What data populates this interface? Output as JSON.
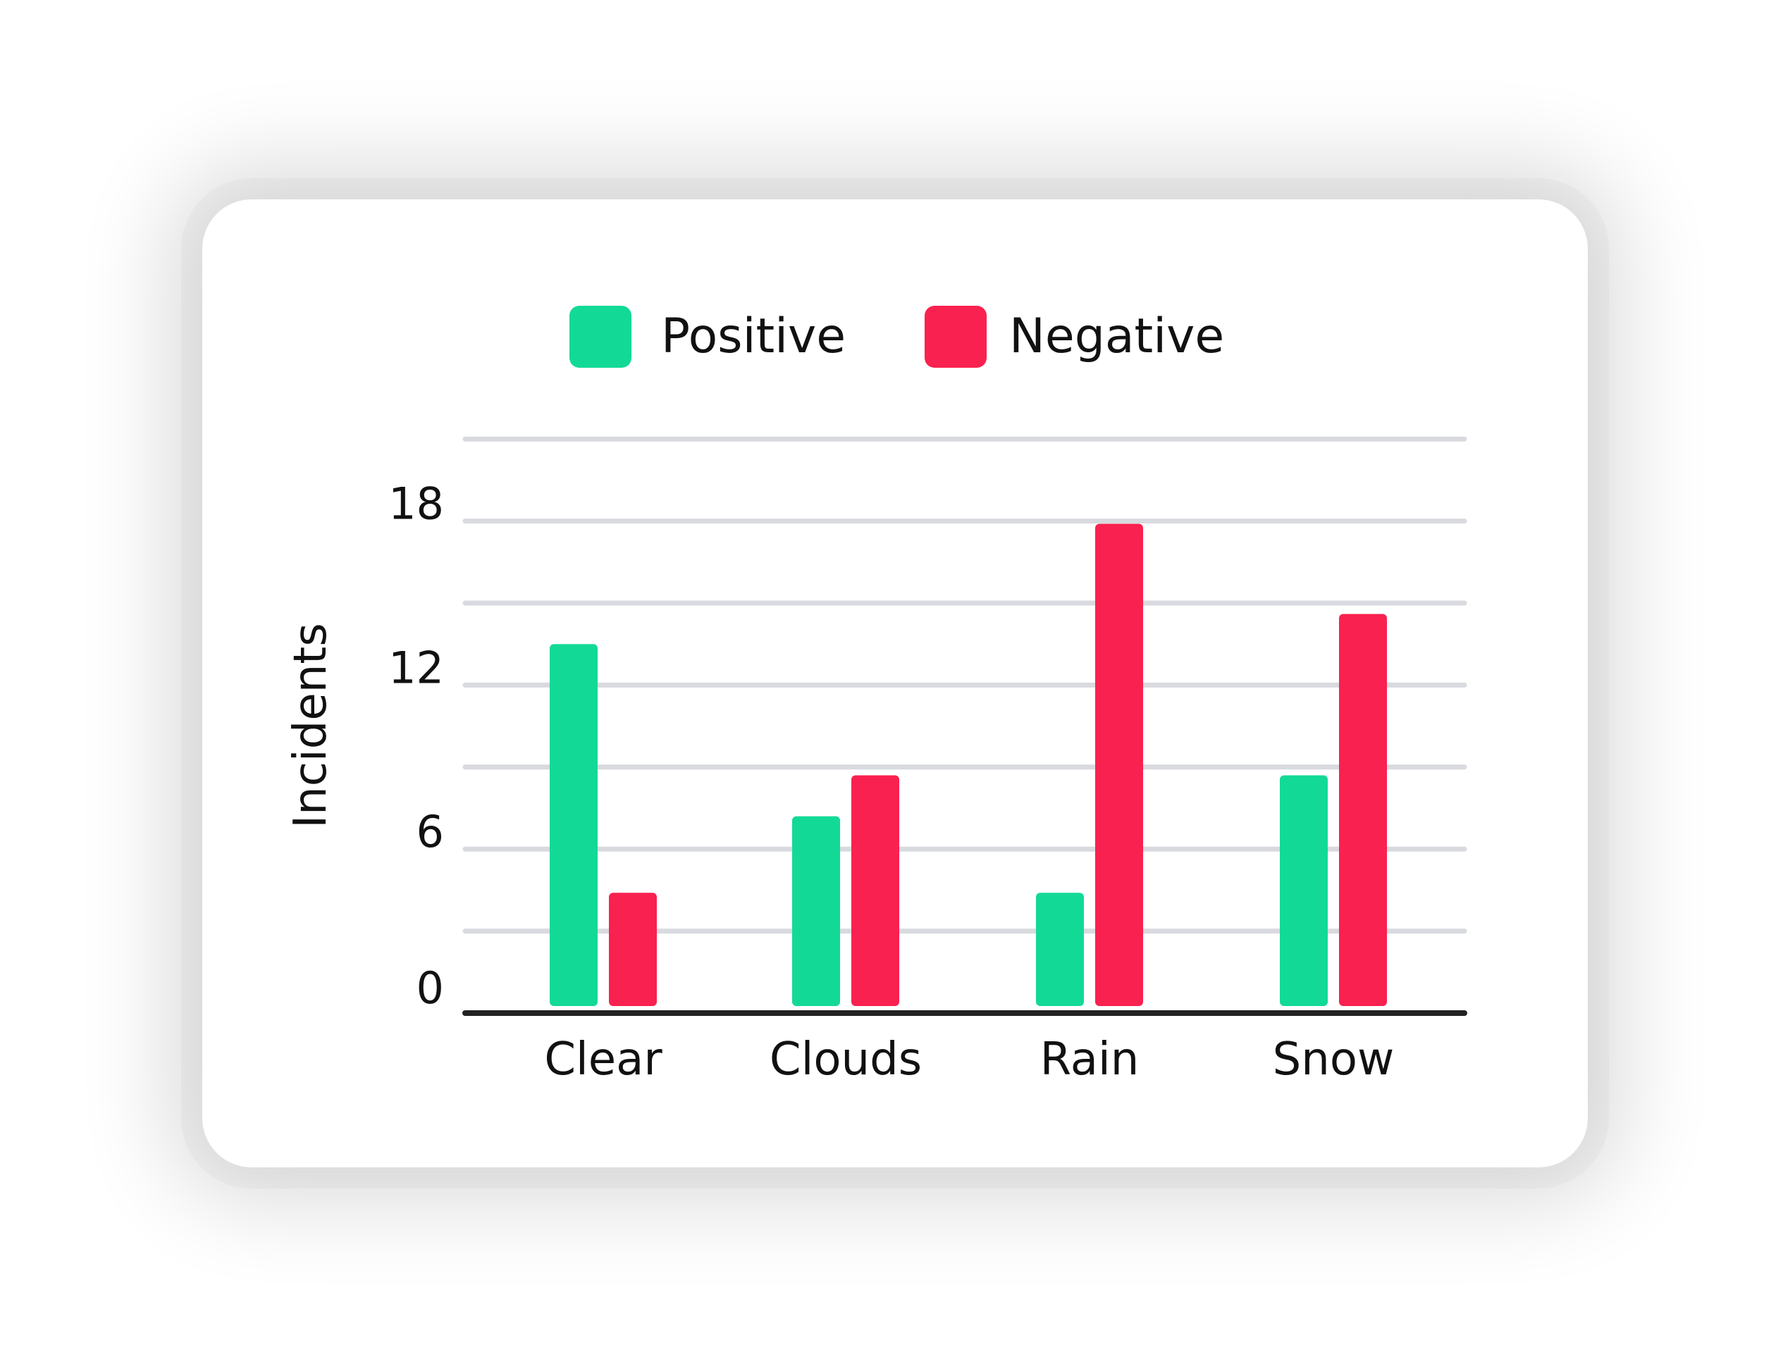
{
  "chart_data": {
    "type": "bar",
    "categories": [
      "Clear",
      "Clouds",
      "Rain",
      "Snow"
    ],
    "series": [
      {
        "name": "Positive",
        "color": "#13D997",
        "values": [
          13.5,
          7.2,
          4.4,
          8.7
        ]
      },
      {
        "name": "Negative",
        "color": "#F9214F",
        "values": [
          4.4,
          8.7,
          17.9,
          14.6
        ]
      }
    ],
    "ylabel": "Incidents",
    "xlabel": "",
    "yticks": [
      0,
      6,
      12,
      18
    ],
    "ylim": [
      0,
      21
    ],
    "grid": true,
    "legend_position": "top"
  }
}
